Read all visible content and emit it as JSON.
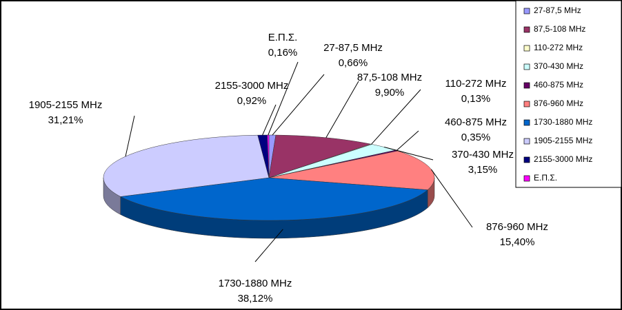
{
  "chart_data": {
    "type": "pie3d",
    "categories": [
      "27-87,5 MHz",
      "87,5-108 MHz",
      "110-272 MHz",
      "370-430 MHz",
      "460-875 MHz",
      "876-960 MHz",
      "1730-1880 MHz",
      "1905-2155 MHz",
      "2155-3000 MHz",
      "Ε.Π.Σ."
    ],
    "values": [
      0.66,
      9.9,
      0.13,
      3.15,
      0.35,
      15.4,
      38.12,
      31.21,
      0.92,
      0.16
    ],
    "value_labels": [
      "0,66%",
      "9,90%",
      "0,13%",
      "3,15%",
      "0,35%",
      "15,40%",
      "38,12%",
      "31,21%",
      "0,92%",
      "0,16%"
    ],
    "colors": [
      "#9999ff",
      "#993366",
      "#ffffcc",
      "#ccffff",
      "#660066",
      "#ff8080",
      "#0066cc",
      "#ccccff",
      "#000080",
      "#ff00ff"
    ],
    "legend": "right"
  }
}
